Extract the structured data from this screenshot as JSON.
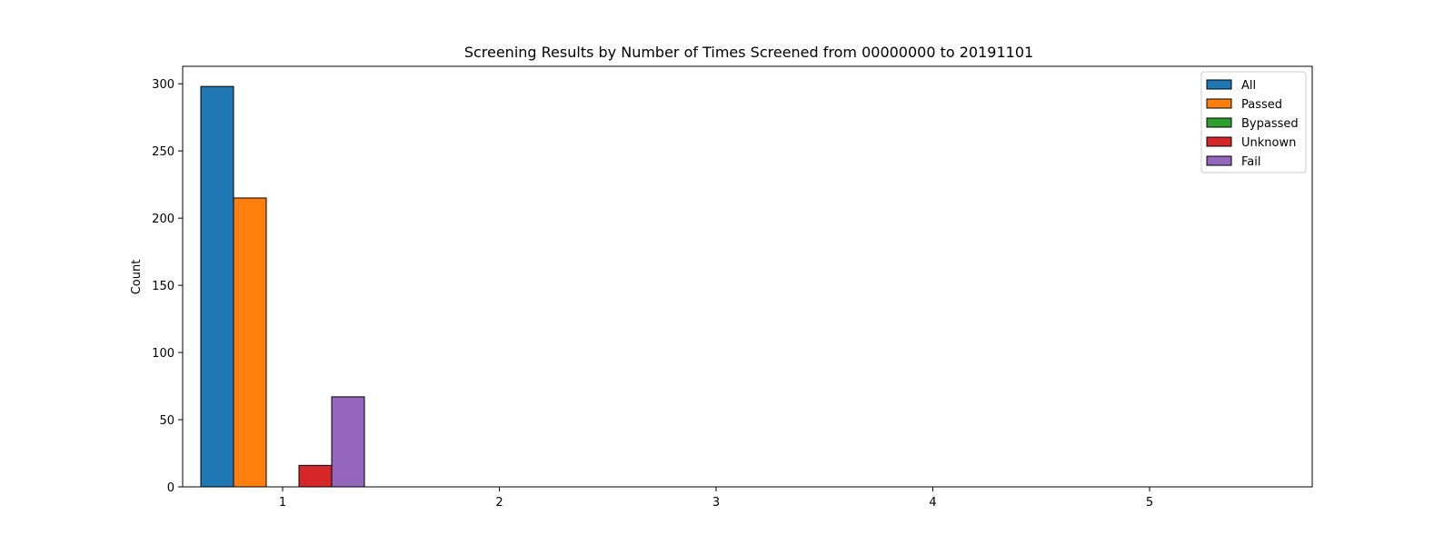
{
  "chart_data": {
    "type": "bar",
    "title": "Screening Results by Number of Times Screened from 00000000 to 20191101",
    "xlabel": "",
    "ylabel": "Count",
    "categories": [
      "1",
      "2",
      "3",
      "4",
      "5"
    ],
    "ylim": [
      0,
      313
    ],
    "y_ticks": [
      0,
      50,
      100,
      150,
      200,
      250,
      300
    ],
    "grid": false,
    "legend_position": "top-right",
    "series": [
      {
        "name": "All",
        "color": "#1f77b4",
        "values": [
          298,
          0,
          0,
          0,
          0
        ]
      },
      {
        "name": "Passed",
        "color": "#ff7f0e",
        "values": [
          215,
          0,
          0,
          0,
          0
        ]
      },
      {
        "name": "Bypassed",
        "color": "#2ca02c",
        "values": [
          0,
          0,
          0,
          0,
          0
        ]
      },
      {
        "name": "Unknown",
        "color": "#d62728",
        "values": [
          16,
          0,
          0,
          0,
          0
        ]
      },
      {
        "name": "Fail",
        "color": "#9467bd",
        "values": [
          67,
          0,
          0,
          0,
          0
        ]
      }
    ]
  }
}
